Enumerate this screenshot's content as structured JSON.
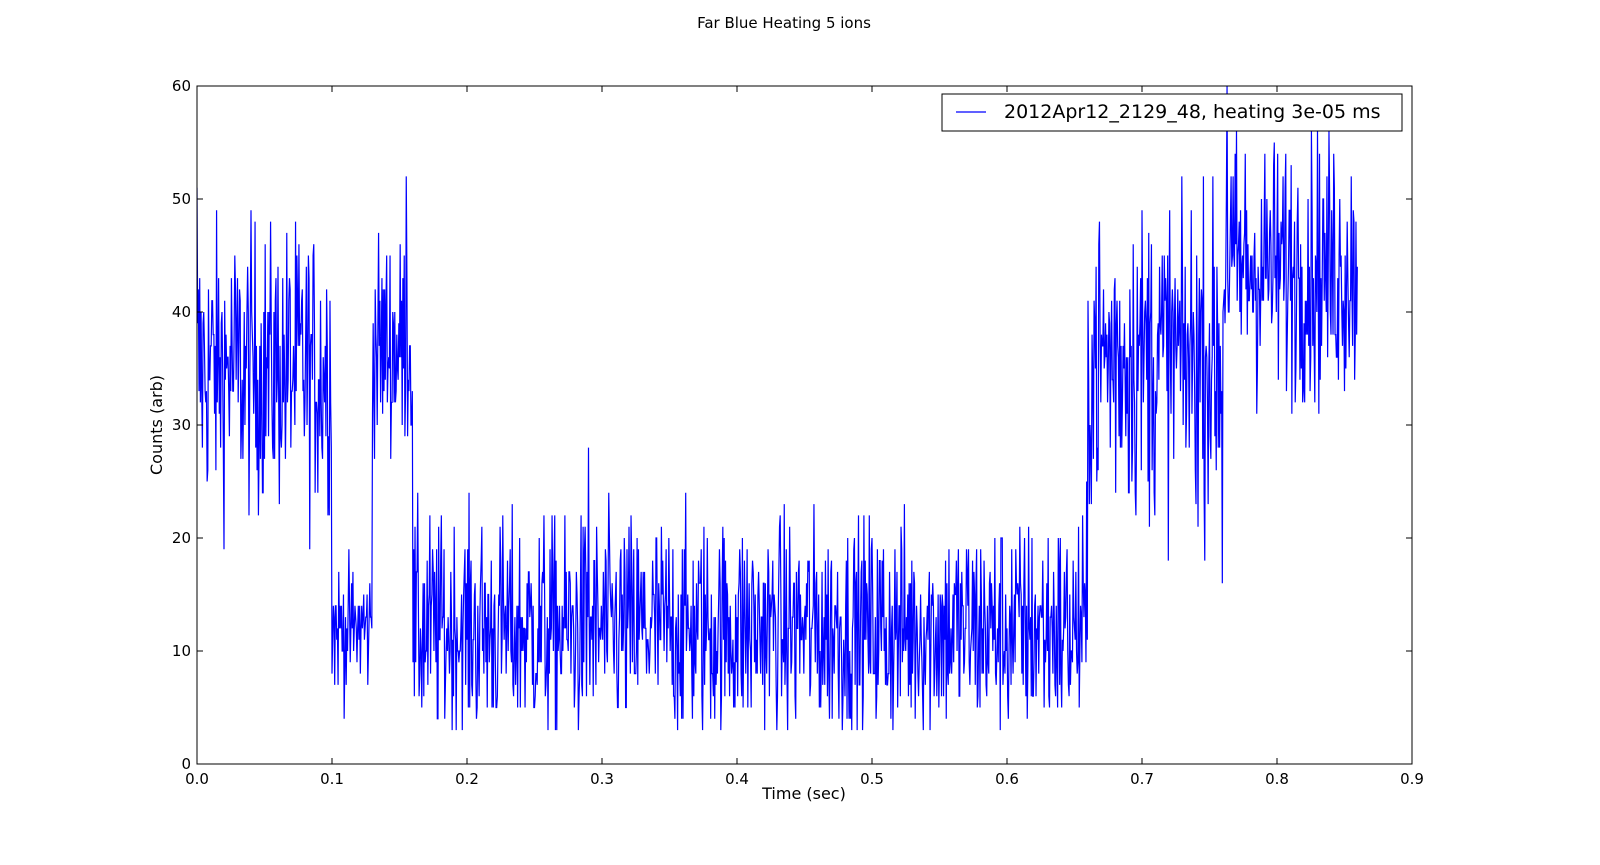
{
  "chart_data": {
    "type": "line",
    "title": "Far Blue Heating 5 ions",
    "xlabel": "Time (sec)",
    "ylabel": "Counts (arb)",
    "xlim": [
      0.0,
      0.9
    ],
    "ylim": [
      0,
      60
    ],
    "xticks": [
      "0.0",
      "0.1",
      "0.2",
      "0.3",
      "0.4",
      "0.5",
      "0.6",
      "0.7",
      "0.8",
      "0.9"
    ],
    "yticks": [
      "0",
      "10",
      "20",
      "30",
      "40",
      "50",
      "60"
    ],
    "grid": false,
    "legend_position": "top-right",
    "color": "#0000ff",
    "series": [
      {
        "name": "2012Apr12_2129_48, heating 3e-05 ms",
        "segments": [
          {
            "x_start": 0.0,
            "x_end": 0.1,
            "mean": 35,
            "low": 19,
            "high": 51,
            "spike_x": 0.0,
            "spike_y": 51
          },
          {
            "x_start": 0.1,
            "x_end": 0.13,
            "mean": 12,
            "low": 4,
            "high": 19
          },
          {
            "x_start": 0.13,
            "x_end": 0.16,
            "mean": 37,
            "low": 27,
            "high": 52,
            "spike_x": 0.155,
            "spike_y": 52
          },
          {
            "x_start": 0.16,
            "x_end": 0.66,
            "mean": 12,
            "low": 3,
            "high": 28,
            "spike_x": 0.29,
            "spike_y": 28
          },
          {
            "x_start": 0.66,
            "x_end": 0.76,
            "mean": 36,
            "low": 16,
            "high": 52,
            "spike_x": 0.76,
            "spike_y": 16
          },
          {
            "x_start": 0.76,
            "x_end": 0.86,
            "mean": 44,
            "low": 30,
            "high": 60,
            "spike_x": 0.763,
            "spike_y": 60
          }
        ]
      }
    ]
  }
}
